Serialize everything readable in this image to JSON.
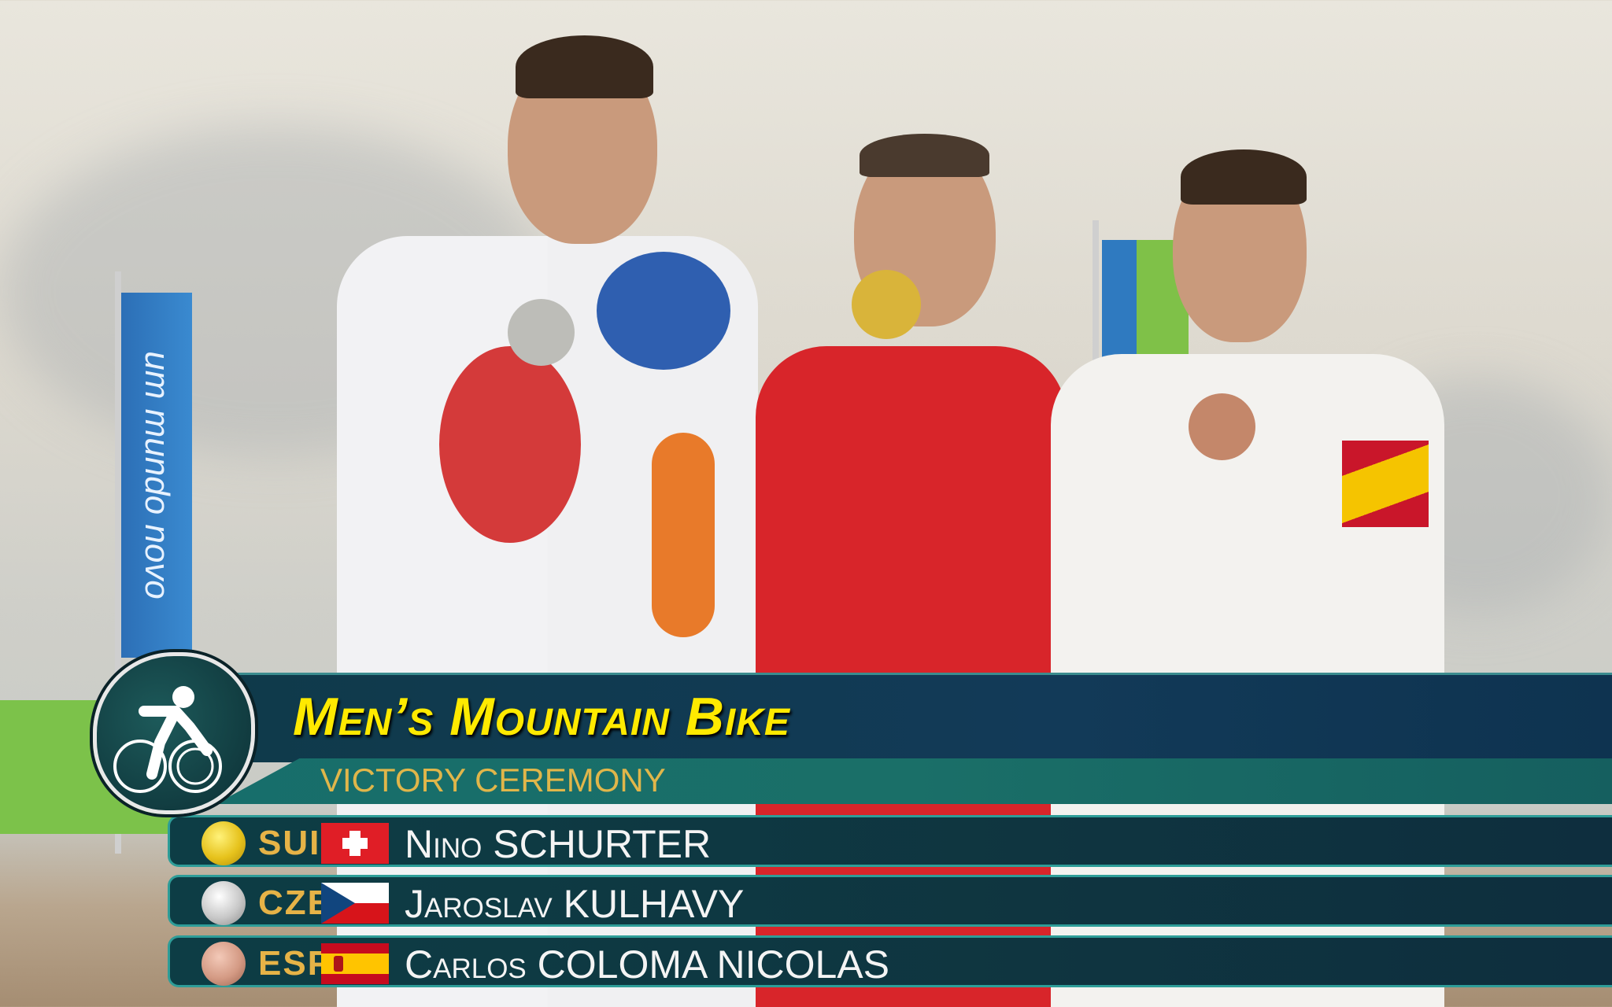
{
  "background": {
    "banner_text": "um mundo novo"
  },
  "overlay": {
    "sport_icon": "cycling-mountain-bike-icon",
    "title": "Men’s Mountain Bike",
    "subtitle": "VICTORY CEREMONY",
    "results": [
      {
        "medal": "gold",
        "medal_color": "#e6c21c",
        "code": "SUI",
        "flag": "switzerland",
        "first_name": "Nino",
        "last_name": "SCHURTER"
      },
      {
        "medal": "silver",
        "medal_color": "#c8c8c8",
        "code": "CZE",
        "flag": "czech-republic",
        "first_name": "Jaroslav",
        "last_name": "KULHAVY"
      },
      {
        "medal": "bronze",
        "medal_color": "#d49a84",
        "code": "ESP",
        "flag": "spain",
        "first_name": "Carlos",
        "last_name": "COLOMA NICOLAS"
      }
    ]
  }
}
